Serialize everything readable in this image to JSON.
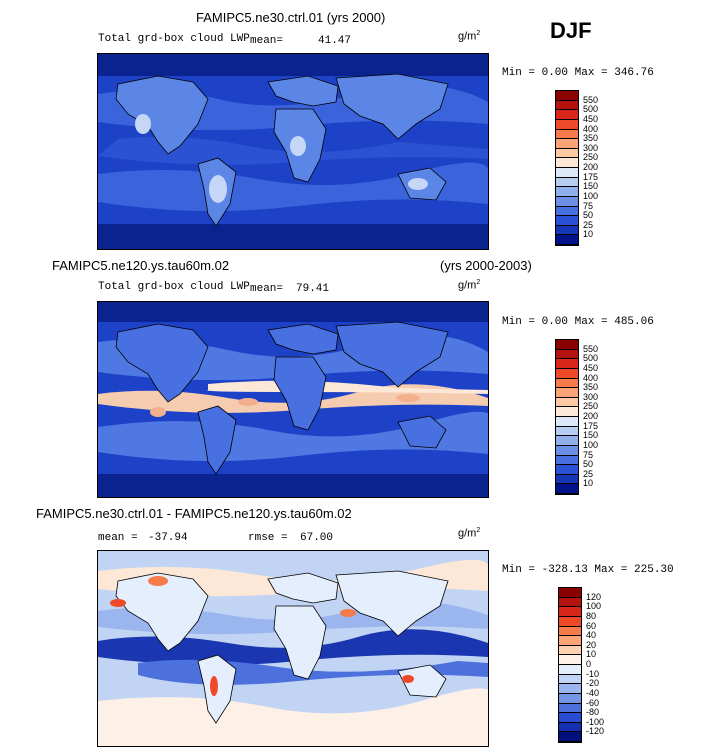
{
  "season": "DJF",
  "unit": "g/m",
  "unit_exp": "2",
  "panels": [
    {
      "title": "FAMIPC5.ne30.ctrl.01 (yrs 2000)",
      "variable": "Total grd-box cloud LWP",
      "mean_label": "mean=",
      "mean_value": "41.47",
      "minmax": "Min =   0.00 Max = 346.76",
      "colorbar_levels": [
        "550",
        "500",
        "450",
        "400",
        "350",
        "300",
        "250",
        "200",
        "175",
        "150",
        "100",
        "75",
        "50",
        "25",
        "10"
      ],
      "colorbar_colors": [
        "#8b0000",
        "#b4120c",
        "#d9261a",
        "#ee4a2a",
        "#f77a4c",
        "#fba477",
        "#fdc9a5",
        "#fde7d6",
        "#dde8f8",
        "#b8cdf2",
        "#90b0ec",
        "#6b90e6",
        "#4870e0",
        "#2b52d6",
        "#1636b8",
        "#02128a"
      ]
    },
    {
      "title": "FAMIPC5.ne120.ys.tau60m.02",
      "title_right": "(yrs 2000-2003)",
      "variable": "Total grd-box cloud LWP",
      "mean_label": "mean=",
      "mean_value": "79.41",
      "minmax": "Min =   0.00 Max = 485.06",
      "colorbar_levels": [
        "550",
        "500",
        "450",
        "400",
        "350",
        "300",
        "250",
        "200",
        "175",
        "150",
        "100",
        "75",
        "50",
        "25",
        "10"
      ],
      "colorbar_colors": [
        "#8b0000",
        "#b4120c",
        "#d9261a",
        "#ee4a2a",
        "#f77a4c",
        "#fba477",
        "#fdc9a5",
        "#fde7d6",
        "#dde8f8",
        "#b8cdf2",
        "#90b0ec",
        "#6b90e6",
        "#4870e0",
        "#2b52d6",
        "#1636b8",
        "#02128a"
      ]
    },
    {
      "title": "FAMIPC5.ne30.ctrl.01 - FAMIPC5.ne120.ys.tau60m.02",
      "mean_label": "mean =",
      "mean_value": "-37.94",
      "rmse_label": "rmse =",
      "rmse_value": "67.00",
      "minmax": "Min = -328.13 Max = 225.30",
      "colorbar_levels": [
        "120",
        "100",
        "80",
        "60",
        "40",
        "20",
        "10",
        "0",
        "-10",
        "-20",
        "-40",
        "-60",
        "-80",
        "-100",
        "-120"
      ],
      "colorbar_colors": [
        "#8b0000",
        "#b4120c",
        "#d9261a",
        "#ee4a2a",
        "#f77a4c",
        "#fba477",
        "#fdd0b0",
        "#fdf0e6",
        "#e4eefc",
        "#c2d4f4",
        "#9bb6ee",
        "#7494e6",
        "#4c70dc",
        "#2a4cd0",
        "#1430b0",
        "#02107c"
      ]
    }
  ]
}
